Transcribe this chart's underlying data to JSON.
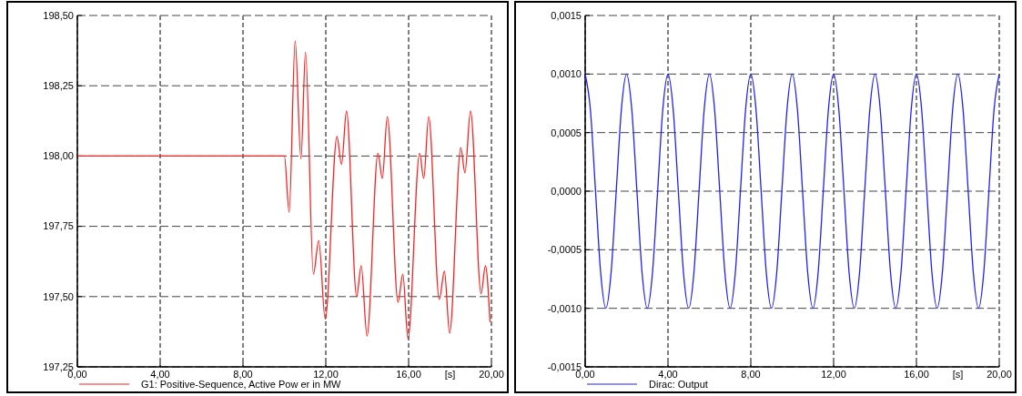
{
  "chart_data": [
    {
      "type": "line",
      "xlabel": "[s]",
      "xlim": [
        0,
        20
      ],
      "ylim": [
        197.25,
        198.5
      ],
      "xticks": [
        {
          "value": 0,
          "label": "0,00"
        },
        {
          "value": 4,
          "label": "4,00"
        },
        {
          "value": 8,
          "label": "8,00"
        },
        {
          "value": 12,
          "label": "12,00"
        },
        {
          "value": 16,
          "label": "16,00"
        },
        {
          "value": 20,
          "label": "20,00"
        }
      ],
      "yticks": [
        {
          "value": 197.25,
          "label": "197,25"
        },
        {
          "value": 197.5,
          "label": "197,50"
        },
        {
          "value": 197.75,
          "label": "197,75"
        },
        {
          "value": 198,
          "label": "198,00"
        },
        {
          "value": 198.25,
          "label": "198,25"
        },
        {
          "value": 198.5,
          "label": "198,50"
        }
      ],
      "grid": true,
      "legend": "bottom",
      "line_style": "solid",
      "series": [
        {
          "name": "G1: Positive-Sequence, Active Pow er in MW",
          "color": "#ff2020",
          "x": [
            0,
            10.0,
            10.23,
            10.52,
            10.8,
            11.02,
            11.4,
            11.66,
            11.97,
            12.54,
            12.76,
            13.0,
            13.49,
            13.71,
            13.99,
            14.52,
            14.73,
            14.97,
            15.49,
            15.72,
            15.97,
            16.53,
            16.73,
            16.97,
            17.48,
            17.73,
            17.98,
            18.52,
            18.72,
            18.99,
            19.5,
            19.71,
            19.93
          ],
          "values": [
            198.0,
            198.0,
            197.8,
            198.41,
            197.99,
            198.37,
            197.58,
            197.7,
            197.42,
            198.07,
            197.97,
            198.16,
            197.5,
            197.61,
            197.36,
            198.01,
            197.92,
            198.14,
            197.48,
            197.58,
            197.35,
            198.01,
            197.92,
            198.14,
            197.49,
            197.59,
            197.37,
            198.03,
            197.94,
            198.16,
            197.51,
            197.61,
            197.41
          ]
        }
      ]
    },
    {
      "type": "line",
      "xlabel": "[s]",
      "xlim": [
        0,
        20
      ],
      "ylim": [
        -0.0015,
        0.0015
      ],
      "xticks": [
        {
          "value": 0,
          "label": "0,00"
        },
        {
          "value": 4,
          "label": "4,00"
        },
        {
          "value": 8,
          "label": "8,00"
        },
        {
          "value": 12,
          "label": "12,00"
        },
        {
          "value": 16,
          "label": "16,00"
        },
        {
          "value": 20,
          "label": "20,00"
        }
      ],
      "yticks": [
        {
          "value": -0.0015,
          "label": "-0,0015"
        },
        {
          "value": -0.001,
          "label": "-0,0010"
        },
        {
          "value": -0.0005,
          "label": "-0,0005"
        },
        {
          "value": 0,
          "label": "0,0000"
        },
        {
          "value": 0.0005,
          "label": "0,0005"
        },
        {
          "value": 0.001,
          "label": "0,0010"
        },
        {
          "value": 0.0015,
          "label": "0,0015"
        }
      ],
      "grid": true,
      "legend": "bottom",
      "line_style": "solid",
      "series": [
        {
          "name": "Dirac: Output",
          "color": "#2020ff",
          "x": [
            0,
            0.25,
            0.5,
            0.75,
            1,
            1.25,
            1.5,
            1.75,
            2,
            2.25,
            2.5,
            2.75,
            3,
            3.25,
            3.5,
            3.75,
            4,
            4.25,
            4.5,
            4.75,
            5,
            5.25,
            5.5,
            5.75,
            6,
            6.25,
            6.5,
            6.75,
            7,
            7.25,
            7.5,
            7.75,
            8,
            8.25,
            8.5,
            8.75,
            9,
            9.25,
            9.5,
            9.75,
            10,
            10.25,
            10.5,
            10.75,
            11,
            11.25,
            11.5,
            11.75,
            12,
            12.25,
            12.5,
            12.75,
            13,
            13.25,
            13.5,
            13.75,
            14,
            14.25,
            14.5,
            14.75,
            15,
            15.25,
            15.5,
            15.75,
            16,
            16.25,
            16.5,
            16.75,
            17,
            17.25,
            17.5,
            17.75,
            18,
            18.25,
            18.5,
            18.75,
            19,
            19.25,
            19.5,
            19.75,
            20
          ],
          "values": [
            0.001,
            0.0007,
            0,
            -0.0007,
            -0.001,
            -0.0007,
            0,
            0.0007,
            0.001,
            0.0007,
            0,
            -0.0007,
            -0.001,
            -0.0007,
            0,
            0.0007,
            0.001,
            0.0007,
            0,
            -0.0007,
            -0.001,
            -0.0007,
            0,
            0.0007,
            0.001,
            0.0007,
            0,
            -0.0007,
            -0.001,
            -0.0007,
            0,
            0.0007,
            0.001,
            0.0007,
            0,
            -0.0007,
            -0.001,
            -0.0007,
            0,
            0.0007,
            0.001,
            0.0007,
            0,
            -0.0007,
            -0.001,
            -0.0007,
            0,
            0.0007,
            0.001,
            0.0007,
            0,
            -0.0007,
            -0.001,
            -0.0007,
            0,
            0.0007,
            0.001,
            0.0007,
            0,
            -0.0007,
            -0.001,
            -0.0007,
            0,
            0.0007,
            0.001,
            0.0007,
            0,
            -0.0007,
            -0.001,
            -0.0007,
            0,
            0.0007,
            0.001,
            0.0007,
            0,
            -0.0007,
            -0.001,
            -0.0007,
            0,
            0.0007,
            0.001
          ]
        }
      ]
    }
  ]
}
